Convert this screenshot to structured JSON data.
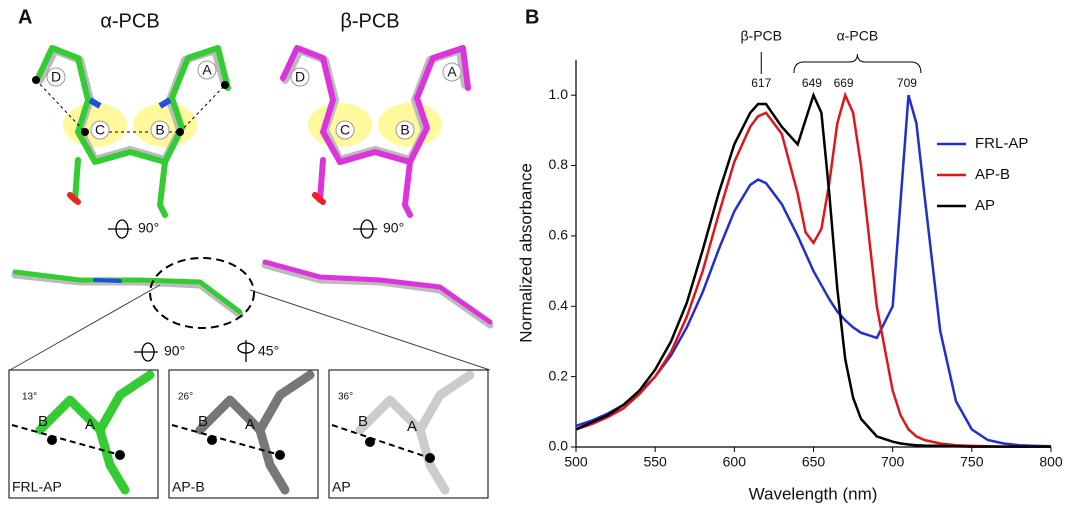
{
  "panel_a": {
    "label": "A",
    "structures": [
      "α-PCB",
      "β-PCB"
    ],
    "rings_alpha": [
      "D",
      "C",
      "B",
      "A"
    ],
    "rings_beta": [
      "D",
      "C",
      "B",
      "A"
    ],
    "rotations": [
      "90°",
      "90°",
      "90°",
      "45°"
    ],
    "insets": [
      {
        "name": "FRL-AP",
        "angle": "13°",
        "rings": [
          "B",
          "A"
        ]
      },
      {
        "name": "AP-B",
        "angle": "26°",
        "rings": [
          "B",
          "A"
        ]
      },
      {
        "name": "AP",
        "angle": "36°",
        "rings": [
          "B",
          "A"
        ]
      }
    ]
  },
  "chart_data": {
    "type": "line",
    "panel_label": "B",
    "annotations": [
      "β-PCB",
      "α-PCB"
    ],
    "peak_labels": [
      617,
      649,
      669,
      709
    ],
    "x_label": "Wavelength (nm)",
    "y_label": "Normalized absorbance",
    "x": [
      500,
      510,
      520,
      530,
      540,
      550,
      560,
      570,
      580,
      590,
      600,
      610,
      615,
      620,
      630,
      640,
      645,
      650,
      655,
      660,
      665,
      670,
      675,
      680,
      690,
      700,
      705,
      710,
      715,
      720,
      730,
      740,
      750,
      760,
      770,
      780,
      790,
      800
    ],
    "series": [
      {
        "name": "FRL-AP",
        "color": "#1f2fd0",
        "values": [
          0.06,
          0.075,
          0.095,
          0.12,
          0.155,
          0.2,
          0.26,
          0.34,
          0.44,
          0.56,
          0.67,
          0.745,
          0.76,
          0.75,
          0.69,
          0.6,
          0.55,
          0.5,
          0.46,
          0.42,
          0.385,
          0.36,
          0.34,
          0.325,
          0.31,
          0.4,
          0.7,
          1.0,
          0.92,
          0.72,
          0.33,
          0.13,
          0.05,
          0.02,
          0.01,
          0.005,
          0.003,
          0.002
        ]
      },
      {
        "name": "AP-B",
        "color": "#e0161b",
        "values": [
          0.05,
          0.065,
          0.085,
          0.11,
          0.15,
          0.2,
          0.27,
          0.37,
          0.5,
          0.66,
          0.81,
          0.91,
          0.94,
          0.95,
          0.89,
          0.72,
          0.61,
          0.58,
          0.62,
          0.75,
          0.92,
          1.0,
          0.95,
          0.8,
          0.4,
          0.16,
          0.09,
          0.05,
          0.03,
          0.02,
          0.01,
          0.005,
          0.003,
          0.002,
          0.001,
          0.001,
          0.001,
          0.001
        ]
      },
      {
        "name": "AP",
        "color": "#000000",
        "values": [
          0.05,
          0.07,
          0.09,
          0.12,
          0.16,
          0.22,
          0.3,
          0.41,
          0.56,
          0.72,
          0.86,
          0.95,
          0.975,
          0.975,
          0.91,
          0.86,
          0.93,
          1.0,
          0.95,
          0.72,
          0.45,
          0.25,
          0.14,
          0.08,
          0.03,
          0.015,
          0.01,
          0.007,
          0.005,
          0.004,
          0.003,
          0.002,
          0.001,
          0.001,
          0.001,
          0.001,
          0.001,
          0.001
        ]
      }
    ],
    "xlim": [
      500,
      800
    ],
    "xticks": [
      500,
      550,
      600,
      650,
      700,
      750,
      800
    ],
    "ylim": [
      0,
      1.1
    ],
    "yticks": [
      {
        "value": 0,
        "label": "0.0"
      },
      0.2,
      0.4,
      0.6,
      0.8,
      {
        "value": 1,
        "label": "1.0"
      }
    ],
    "grid": false,
    "legend": "right"
  }
}
